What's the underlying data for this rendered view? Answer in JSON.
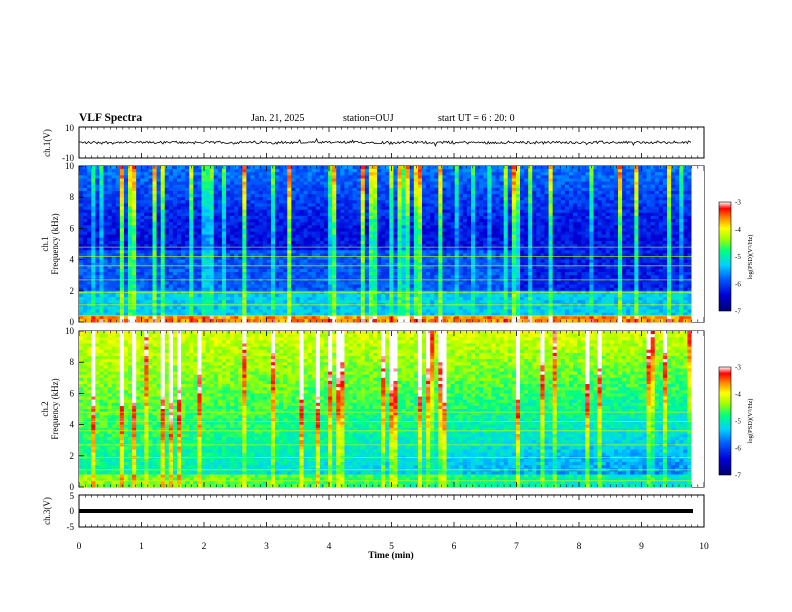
{
  "header": {
    "title": "VLF Spectra",
    "date": "Jan. 21, 2025",
    "station": "station=OUJ",
    "start": "start UT =  6 : 20: 0"
  },
  "colors": {
    "waveform": "#000000",
    "colormap": [
      "#000070",
      "#0000c8",
      "#0050ff",
      "#00c8ff",
      "#00ff96",
      "#96ff00",
      "#ffff00",
      "#ff9600",
      "#ff0000",
      "#ffffff"
    ]
  },
  "chart_data": [
    {
      "type": "line",
      "name": "ch1-waveform",
      "ylabel": "ch.1(V)",
      "ylim": [
        -10,
        10
      ],
      "yticks": [
        "10",
        "-10"
      ],
      "xlim": [
        0,
        10
      ],
      "description_level": "noise band approx ±1 V centered at 0",
      "x": [
        0,
        9.8
      ],
      "y_mean": 0,
      "y_amplitude": 1
    },
    {
      "type": "heatmap",
      "name": "ch1-spectrogram",
      "ylabel": "ch.1\nFrequency (kHz)",
      "ylim": [
        0,
        10
      ],
      "yticks": [
        "0",
        "2",
        "4",
        "6",
        "8",
        "10"
      ],
      "xlim": [
        0,
        10
      ],
      "data_end_min": 9.8,
      "colorbar": {
        "label": "log(PSD)(V²/Hz)",
        "range": [
          -7,
          -3
        ],
        "ticks": [
          "-3",
          "-4",
          "-5",
          "-6",
          "-7"
        ]
      }
    },
    {
      "type": "heatmap",
      "name": "ch2-spectrogram",
      "ylabel": "ch.2\nFrequency (kHz)",
      "ylim": [
        0,
        10
      ],
      "yticks": [
        "0",
        "2",
        "4",
        "6",
        "8",
        "10"
      ],
      "xlim": [
        0,
        10
      ],
      "data_end_min": 9.8,
      "colorbar": {
        "label": "log(PSD)(V²/Hz)",
        "range": [
          -7,
          -3
        ],
        "ticks": [
          "-3",
          "-4",
          "-5",
          "-6",
          "-7"
        ]
      }
    },
    {
      "type": "line",
      "name": "ch3-waveform",
      "ylabel": "ch.3(V)",
      "ylim": [
        -5,
        5
      ],
      "yticks": [
        "5",
        "0",
        "-5"
      ],
      "xlim": [
        0,
        10
      ],
      "y_level": -1.2,
      "x": [
        0,
        9.8
      ]
    }
  ],
  "xaxis": {
    "label": "Time (min)",
    "ticks": [
      "0",
      "1",
      "2",
      "3",
      "4",
      "5",
      "6",
      "7",
      "8",
      "9",
      "10"
    ]
  }
}
